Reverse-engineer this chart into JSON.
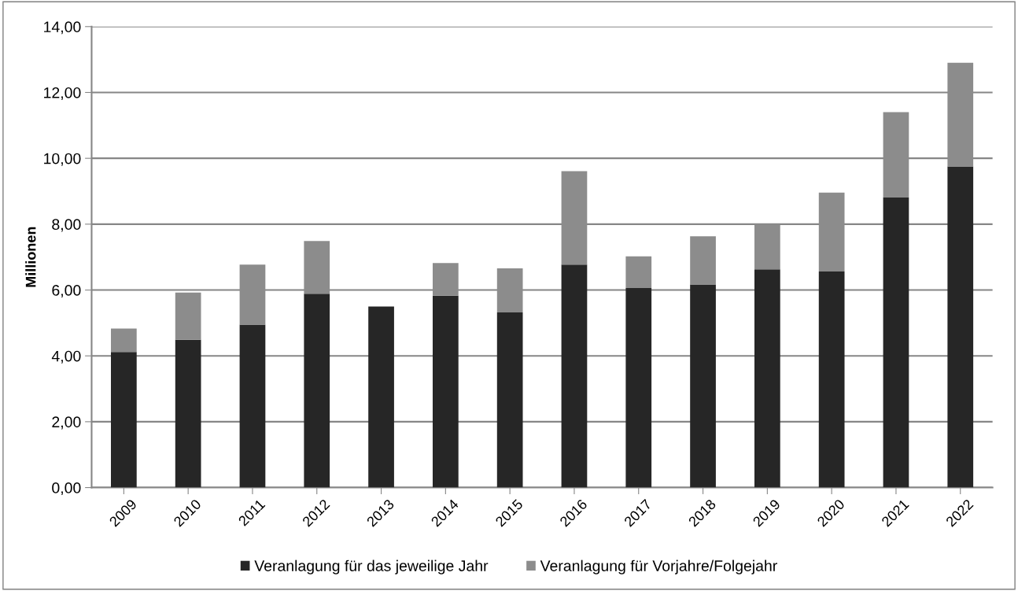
{
  "chart_data": {
    "type": "bar",
    "stacked": true,
    "ylabel": "Millionen",
    "categories": [
      "2009",
      "2010",
      "2011",
      "2012",
      "2013",
      "2014",
      "2015",
      "2016",
      "2017",
      "2018",
      "2019",
      "2020",
      "2021",
      "2022"
    ],
    "series": [
      {
        "name": "Veranlagung für das jeweilige Jahr",
        "color": "#262626",
        "values": [
          4.12,
          4.49,
          4.95,
          5.89,
          5.5,
          5.83,
          5.32,
          6.77,
          6.06,
          6.17,
          6.63,
          6.56,
          8.81,
          9.75
        ]
      },
      {
        "name": "Veranlagung für Vorjahre/Folgejahr",
        "color": "#8c8c8c",
        "values": [
          0.71,
          1.43,
          1.82,
          1.6,
          0,
          0.99,
          1.34,
          2.84,
          0.96,
          1.46,
          1.36,
          2.4,
          2.59,
          3.15
        ]
      }
    ],
    "ylim": [
      0,
      14
    ],
    "yticks": [
      {
        "value": 0,
        "label": "0,00"
      },
      {
        "value": 2,
        "label": "2,00"
      },
      {
        "value": 4,
        "label": "4,00"
      },
      {
        "value": 6,
        "label": "6,00"
      },
      {
        "value": 8,
        "label": "8,00"
      },
      {
        "value": 10,
        "label": "10,00"
      },
      {
        "value": 12,
        "label": "12,00"
      },
      {
        "value": 14,
        "label": "14,00"
      }
    ],
    "grid": "y",
    "legend": "bottom"
  }
}
